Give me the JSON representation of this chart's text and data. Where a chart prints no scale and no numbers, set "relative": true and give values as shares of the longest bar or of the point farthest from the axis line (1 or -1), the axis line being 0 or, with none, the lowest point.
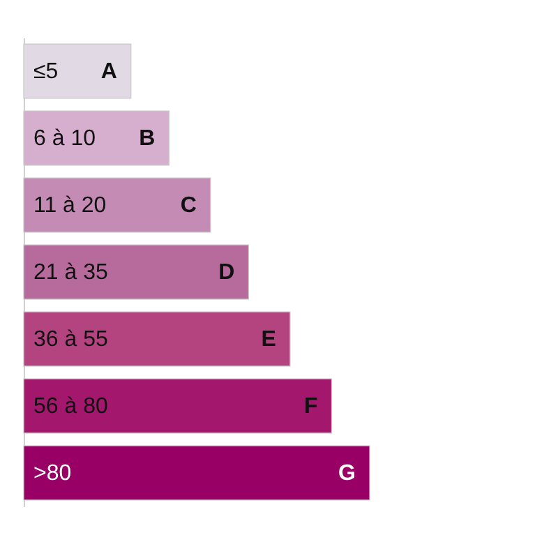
{
  "chart_data": {
    "type": "bar",
    "orientation": "horizontal",
    "relative": true,
    "categories": [
      "≤5",
      "6 à 10",
      "11 à 20",
      "21 à 35",
      "36 à 55",
      "56 à 80",
      ">80"
    ],
    "values": [
      0.31,
      0.42,
      0.54,
      0.65,
      0.77,
      0.89,
      1
    ],
    "colors": [
      "#e1d9e3",
      "#d6afce",
      "#c48bb5",
      "#b66b9c",
      "#b3447f",
      "#a3176c",
      "#990066"
    ],
    "annotations": [
      {
        "text": "A",
        "x": 0.31,
        "y": "≤5"
      },
      {
        "text": "B",
        "x": 0.42,
        "y": "6 à 10"
      },
      {
        "text": "C",
        "x": 0.54,
        "y": "11 à 20"
      },
      {
        "text": "D",
        "x": 0.65,
        "y": "21 à 35"
      },
      {
        "text": "E",
        "x": 0.77,
        "y": "36 à 55"
      },
      {
        "text": "F",
        "x": 0.89,
        "y": "56 à 80"
      },
      {
        "text": "G",
        "x": 1,
        "y": ">80"
      }
    ]
  }
}
